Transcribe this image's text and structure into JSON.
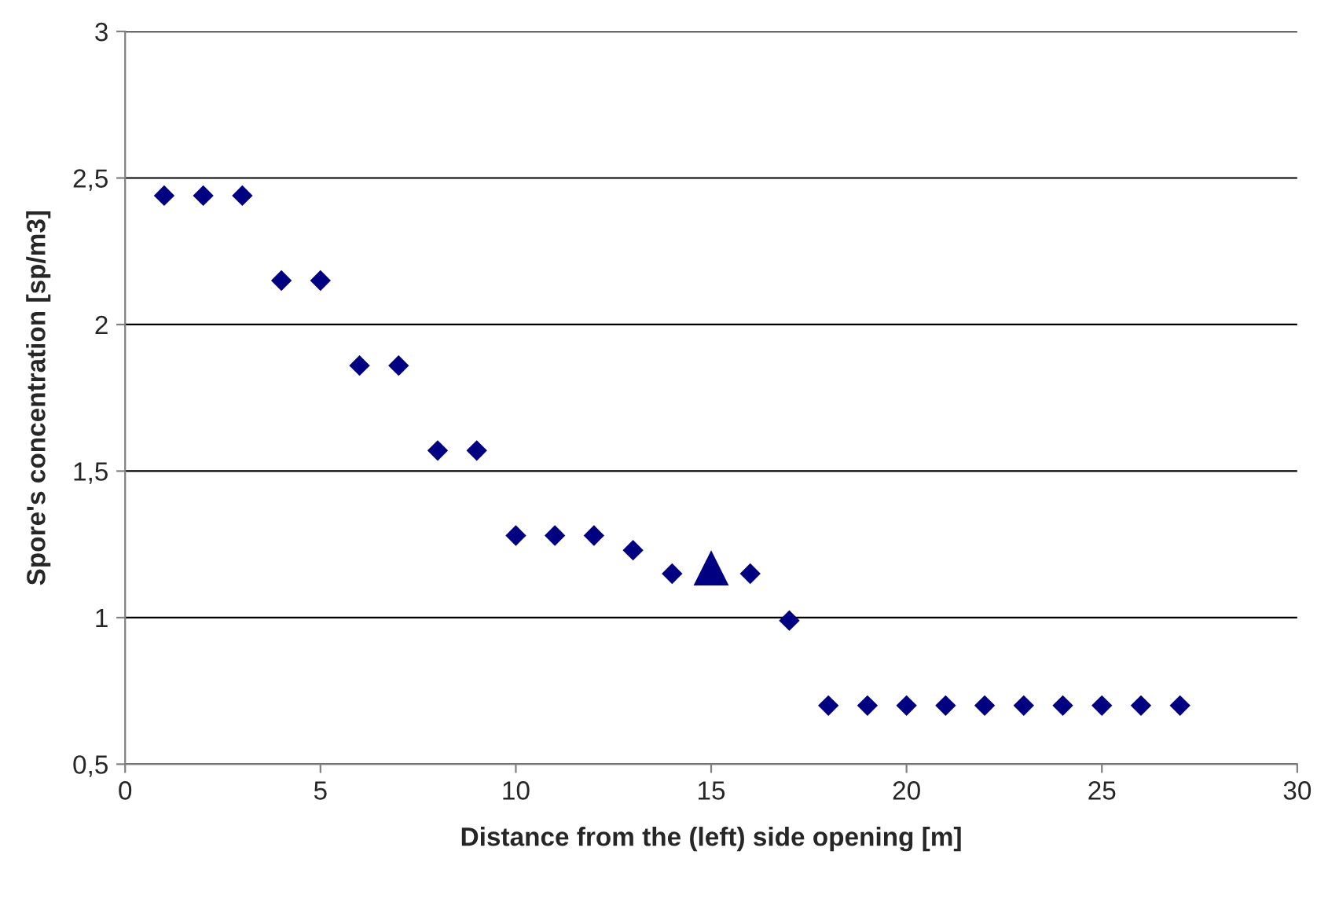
{
  "chart_data": {
    "type": "scatter",
    "xlabel": "Distance from the (left) side opening [m]",
    "ylabel": "Spore's concentration [sp/m3]",
    "xlim": [
      0,
      30
    ],
    "xticks": [
      0,
      5,
      10,
      15,
      20,
      25,
      30
    ],
    "ylim": [
      0.5,
      3
    ],
    "yticks": [
      {
        "value": 0.5,
        "label": "0,5"
      },
      1,
      {
        "value": 1.5,
        "label": "1,5"
      },
      2,
      {
        "value": 2.5,
        "label": "2,5"
      },
      3
    ],
    "grid": "y",
    "legend": false,
    "series": [
      {
        "color": "#000080",
        "marker": "diamond",
        "x": [
          1,
          2,
          3,
          4,
          5,
          6,
          7,
          8,
          9,
          10,
          11,
          12,
          13,
          14,
          16,
          17,
          18,
          19,
          20,
          21,
          22,
          23,
          24,
          25,
          26,
          27
        ],
        "values": [
          2.44,
          2.44,
          2.44,
          2.15,
          2.15,
          1.86,
          1.86,
          1.57,
          1.57,
          1.28,
          1.28,
          1.28,
          1.23,
          1.15,
          1.15,
          0.99,
          0.7,
          0.7,
          0.7,
          0.7,
          0.7,
          0.7,
          0.7,
          0.7,
          0.7,
          0.7
        ]
      },
      {
        "color": "#000080",
        "marker": "triangle",
        "x": [
          15
        ],
        "values": [
          1.17
        ]
      }
    ]
  }
}
